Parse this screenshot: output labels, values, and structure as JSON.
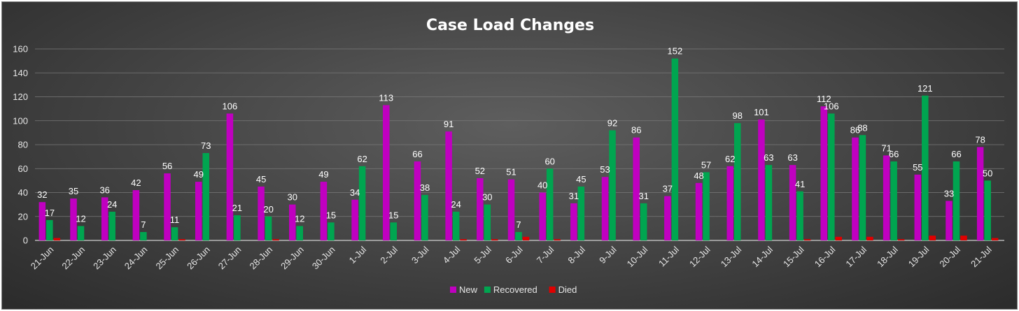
{
  "chart_data": {
    "type": "bar",
    "title": "Case Load Changes",
    "xlabel": "",
    "ylabel": "",
    "ylim": [
      0,
      160
    ],
    "yticks": [
      0,
      20,
      40,
      60,
      80,
      100,
      120,
      140,
      160
    ],
    "grid": true,
    "legend_position": "bottom",
    "categories": [
      "21-Jun",
      "22-Jun",
      "23-Jun",
      "24-Jun",
      "25-Jun",
      "26-Jun",
      "27-Jun",
      "28-Jun",
      "29-Jun",
      "30-Jun",
      "1-Jul",
      "2-Jul",
      "3-Jul",
      "4-Jul",
      "5-Jul",
      "6-Jul",
      "7-Jul",
      "8-Jul",
      "9-Jul",
      "10-Jul",
      "11-Jul",
      "12-Jul",
      "13-Jul",
      "14-Jul",
      "15-Jul",
      "16-Jul",
      "17-Jul",
      "18-Jul",
      "19-Jul",
      "20-Jul",
      "21-Jul"
    ],
    "series": [
      {
        "name": "New",
        "color": "#c000c0",
        "labeled": true,
        "values": [
          32,
          35,
          36,
          42,
          56,
          49,
          106,
          45,
          30,
          49,
          34,
          113,
          66,
          91,
          52,
          51,
          40,
          31,
          53,
          86,
          37,
          48,
          62,
          101,
          63,
          112,
          86,
          71,
          55,
          33,
          78
        ]
      },
      {
        "name": "Recovered",
        "color": "#00a550",
        "labeled": true,
        "values": [
          17,
          12,
          24,
          7,
          11,
          73,
          21,
          20,
          12,
          15,
          62,
          15,
          38,
          24,
          30,
          7,
          60,
          45,
          92,
          31,
          152,
          57,
          98,
          63,
          41,
          106,
          88,
          66,
          121,
          66,
          50
        ]
      },
      {
        "name": "Died",
        "color": "#e00000",
        "labeled": false,
        "values": [
          2,
          0,
          0,
          0,
          1,
          0,
          0,
          1,
          0,
          0,
          0,
          0,
          0,
          1,
          1,
          3,
          1,
          0,
          0,
          0,
          0,
          0,
          0,
          0,
          1,
          3,
          3,
          1,
          4,
          4,
          2
        ]
      }
    ]
  }
}
